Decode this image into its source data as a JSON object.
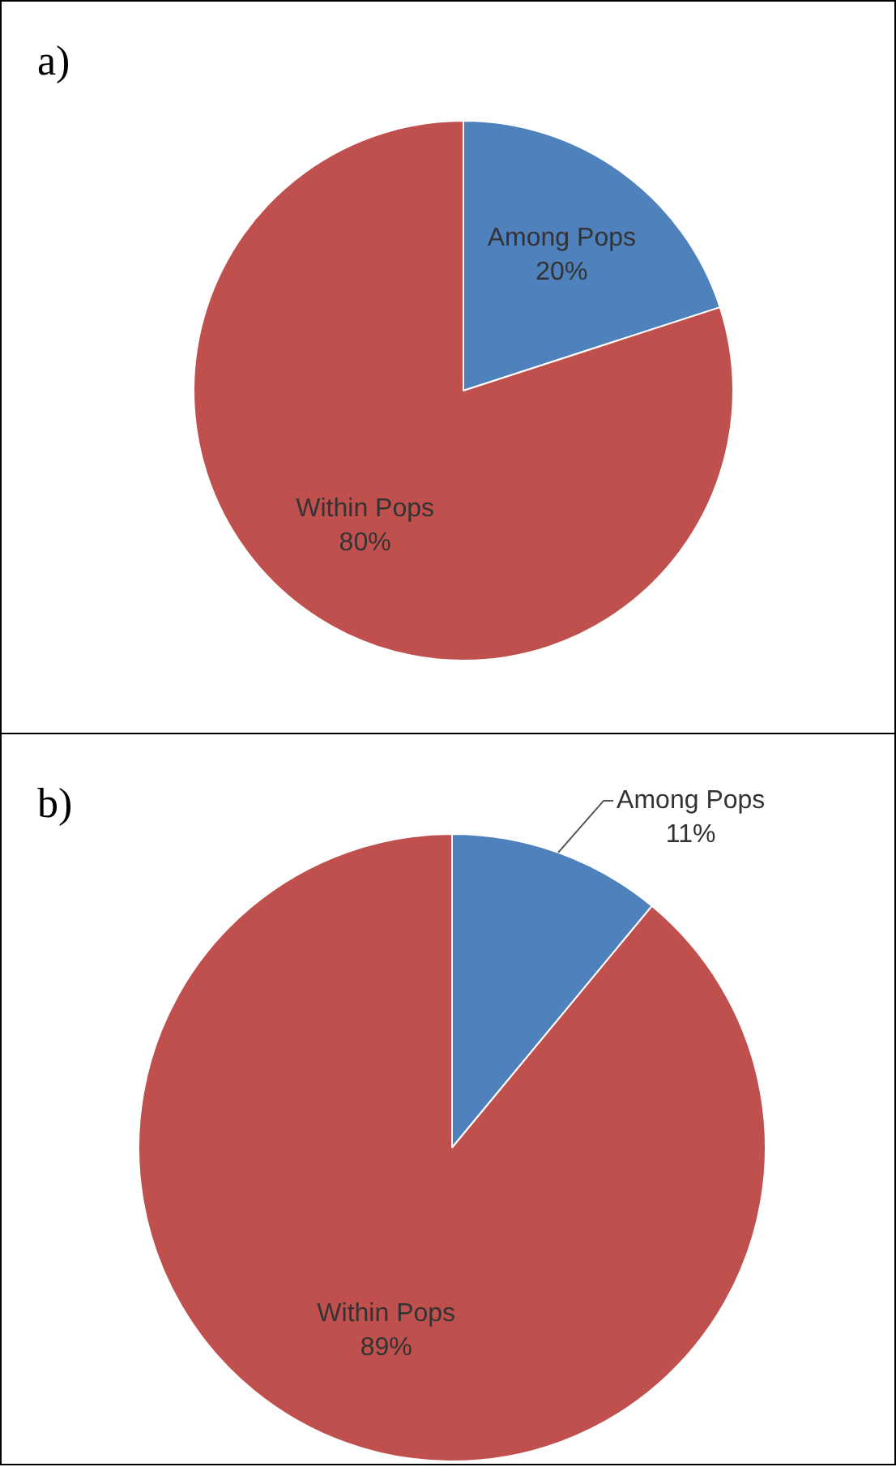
{
  "chart_data": [
    {
      "type": "pie",
      "title": "a)",
      "categories": [
        "Among Pops",
        "Within Pops"
      ],
      "values": [
        20,
        80
      ],
      "colors": [
        "#4f81bd",
        "#c0504d"
      ],
      "value_labels": [
        "20%",
        "80%"
      ]
    },
    {
      "type": "pie",
      "title": "b)",
      "categories": [
        "Among Pops",
        "Within Pops"
      ],
      "values": [
        11,
        89
      ],
      "colors": [
        "#4f81bd",
        "#c0504d"
      ],
      "value_labels": [
        "11%",
        "89%"
      ]
    }
  ]
}
